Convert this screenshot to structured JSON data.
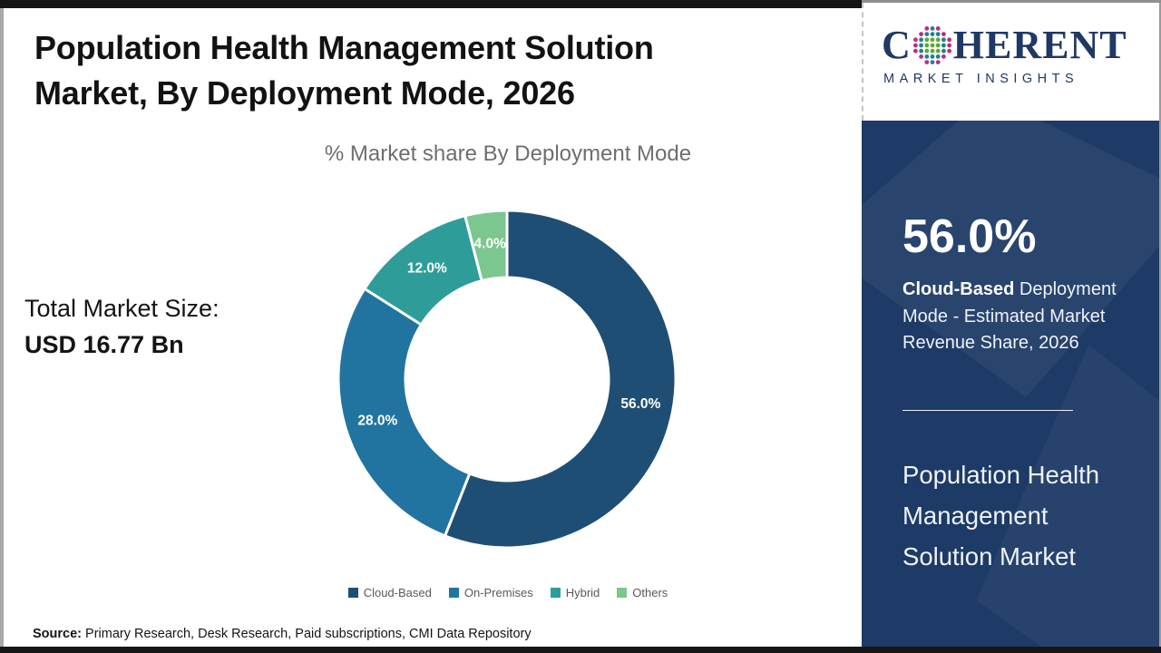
{
  "page": {
    "title_lines": [
      "Population Health Management Solution",
      "Market, By Deployment Mode, 2026"
    ],
    "subtitle": "% Market share By Deployment Mode",
    "total_market_label": "Total Market Size:",
    "total_market_value": "USD 16.77 Bn",
    "source_label": "Source:",
    "source_text": " Primary Research, Desk Research, Paid subscriptions, CMI Data Repository"
  },
  "logo": {
    "name_prefix": "C",
    "name_suffix": "HERENT",
    "tagline": "MARKET INSIGHTS",
    "brand_color": "#1F3864"
  },
  "chart_data": {
    "type": "pie",
    "donut": true,
    "title": "% Market share By Deployment Mode",
    "start_angle_deg": 0,
    "direction": "clockwise",
    "categories": [
      "Cloud-Based",
      "On-Premises",
      "Hybrid",
      "Others"
    ],
    "values": [
      56.0,
      28.0,
      12.0,
      4.0
    ],
    "labels": [
      "56.0%",
      "28.0%",
      "12.0%",
      "4.0%"
    ],
    "colors": [
      "#1F4E74",
      "#21749F",
      "#2E9D99",
      "#7CC68F"
    ],
    "legend_position": "bottom"
  },
  "side_panel": {
    "background": "#1E3A66",
    "stat_value": "56.0%",
    "stat_desc_bold": "Cloud-Based",
    "stat_desc_rest": " Deployment Mode - Estimated Market Revenue Share, 2026",
    "market_name_lines": [
      "Population Health",
      "Management",
      "Solution Market"
    ]
  }
}
